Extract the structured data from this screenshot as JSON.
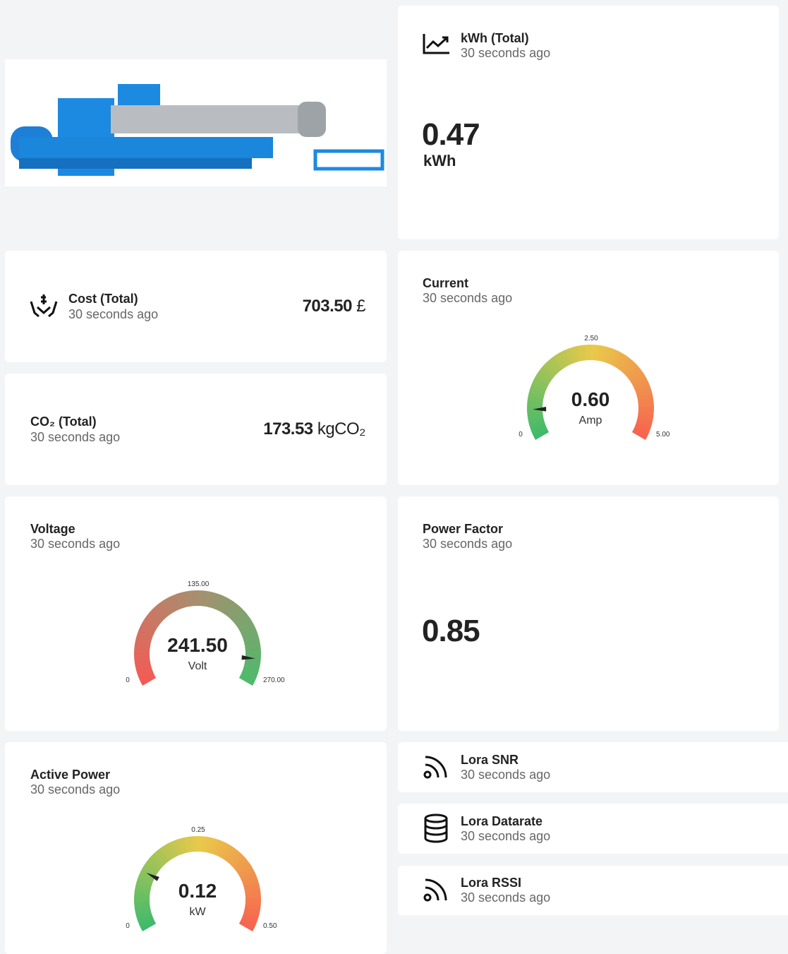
{
  "kwh": {
    "title": "kWh (Total)",
    "time": "30 seconds ago",
    "value": "0.47",
    "unit": "kWh"
  },
  "cost": {
    "title": "Cost (Total)",
    "time": "30 seconds ago",
    "value": "703.50",
    "unit": "£"
  },
  "co2": {
    "title": "CO₂ (Total)",
    "time": "30 seconds ago",
    "value": "173.53",
    "unit": "kgCO₂"
  },
  "current": {
    "title": "Current",
    "time": "30 seconds ago",
    "value": "0.60",
    "unit": "Amp",
    "min": "0",
    "mid": "2.50",
    "max": "5.00",
    "colors": [
      "#3fba6b",
      "#e9c94a",
      "#f7604f"
    ]
  },
  "voltage": {
    "title": "Voltage",
    "time": "30 seconds ago",
    "value": "241.50",
    "unit": "Volt",
    "min": "0",
    "mid": "135.00",
    "max": "270.00",
    "colors": [
      "#f45a55",
      "#a59070",
      "#4cbb6c"
    ]
  },
  "power_factor": {
    "title": "Power Factor",
    "time": "30 seconds ago",
    "value": "0.85"
  },
  "active_power": {
    "title": "Active Power",
    "time": "30 seconds ago",
    "value": "0.12",
    "unit": "kW",
    "min": "0",
    "mid": "0.25",
    "max": "0.50",
    "colors": [
      "#3fba6b",
      "#e9c94a",
      "#f7604f"
    ]
  },
  "lora": [
    {
      "title": "Lora SNR",
      "time": "30 seconds ago"
    },
    {
      "title": "Lora Datarate",
      "time": "30 seconds ago"
    },
    {
      "title": "Lora RSSI",
      "time": "30 seconds ago"
    }
  ]
}
